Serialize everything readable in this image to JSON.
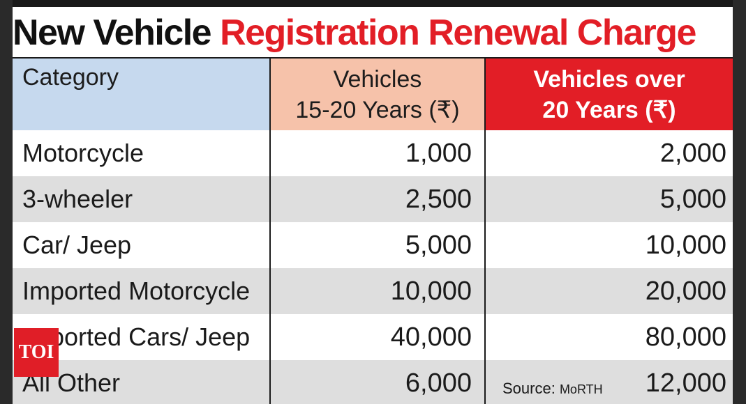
{
  "title": {
    "part1": "New Vehicle",
    "part2": "Registration Renewal Charge"
  },
  "colors": {
    "accent_red": "#e21e26",
    "col1_header": "#c6d9ee",
    "col2_header": "#f6c2aa",
    "row_alt": "#dedede"
  },
  "headers": {
    "category": "Category",
    "col2_line1": "Vehicles",
    "col2_line2": "15-20 Years (₹)",
    "col3_line1": "Vehicles over",
    "col3_line2": "20 Years (₹)"
  },
  "rows": [
    {
      "category": "Motorcycle",
      "v15_20": "1,000",
      "v20plus": "2,000"
    },
    {
      "category": "3-wheeler",
      "v15_20": "2,500",
      "v20plus": "5,000"
    },
    {
      "category": "Car/ Jeep",
      "v15_20": "5,000",
      "v20plus": "10,000"
    },
    {
      "category": "Imported Motorcycle",
      "v15_20": "10,000",
      "v20plus": "20,000"
    },
    {
      "category": "Imported Cars/ Jeep",
      "v15_20": "40,000",
      "v20plus": "80,000"
    },
    {
      "category": "All Other",
      "v15_20": "6,000",
      "v20plus": "12,000"
    }
  ],
  "source": {
    "label": "Source: ",
    "value": "MoRTH"
  },
  "logo": {
    "text": "TOI",
    "icon": "toi-logo-icon"
  },
  "chart_data": {
    "type": "table",
    "title": "New Vehicle Registration Renewal Charge",
    "columns": [
      "Category",
      "Vehicles 15-20 Years (₹)",
      "Vehicles over 20 Years (₹)"
    ],
    "categories": [
      "Motorcycle",
      "3-wheeler",
      "Car/ Jeep",
      "Imported Motorcycle",
      "Imported Cars/ Jeep",
      "All Other"
    ],
    "series": [
      {
        "name": "Vehicles 15-20 Years (₹)",
        "values": [
          1000,
          2500,
          5000,
          10000,
          40000,
          6000
        ]
      },
      {
        "name": "Vehicles over 20 Years (₹)",
        "values": [
          2000,
          5000,
          10000,
          20000,
          80000,
          12000
        ]
      }
    ]
  }
}
